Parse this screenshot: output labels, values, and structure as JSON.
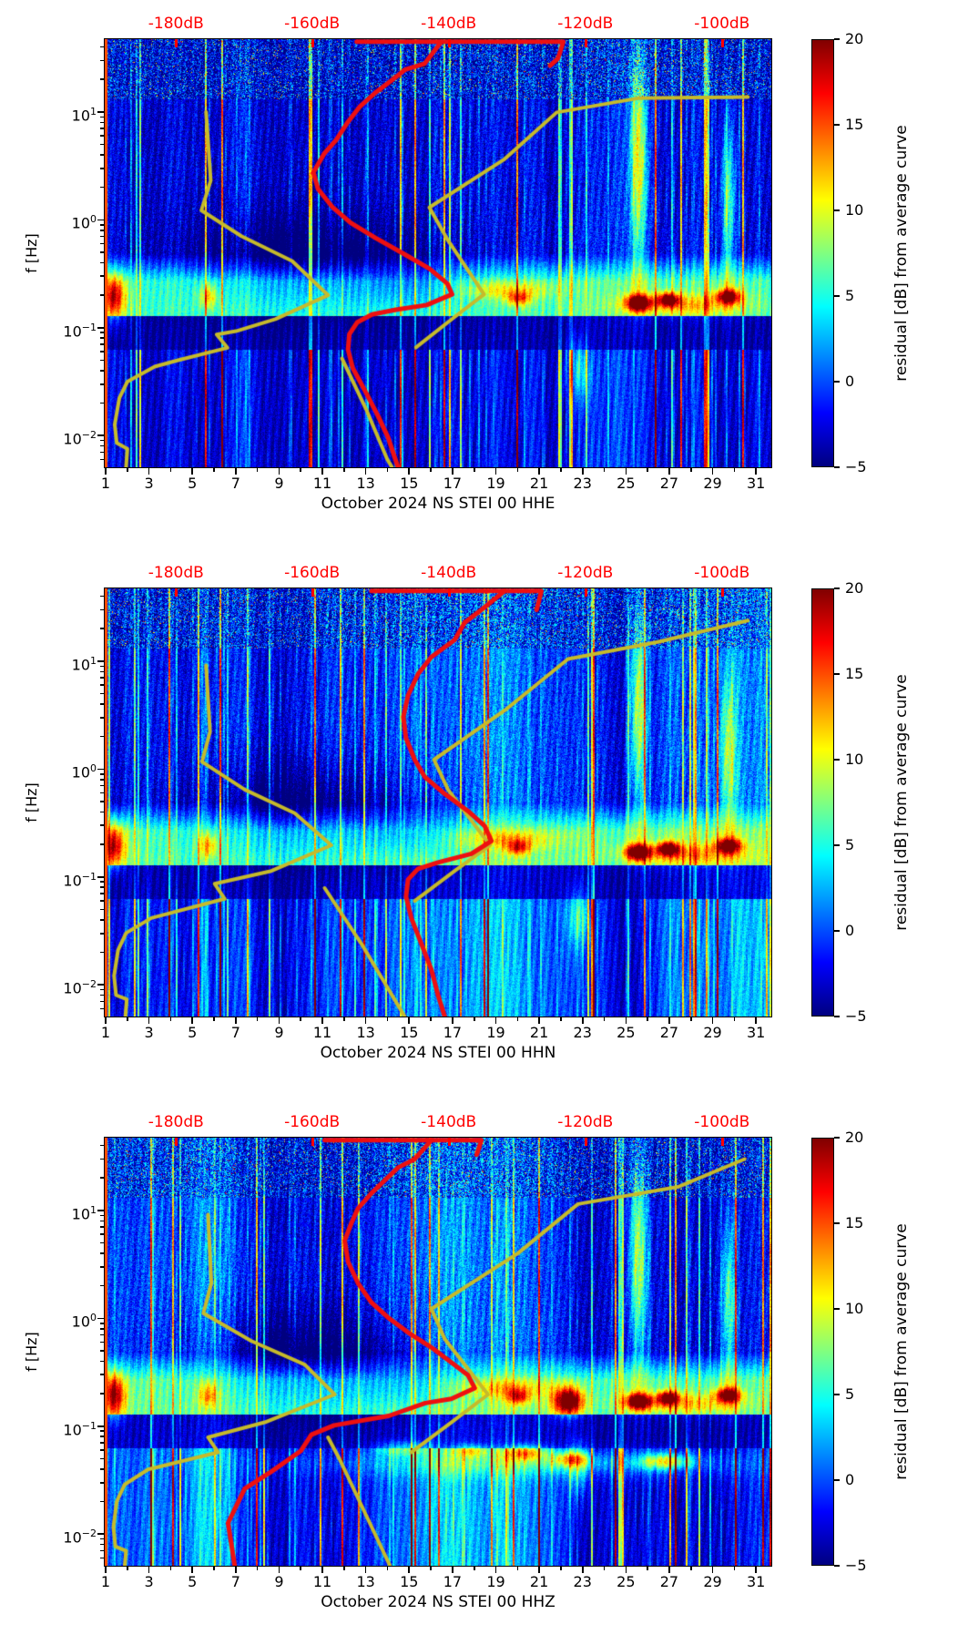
{
  "colors": {
    "label_red": "#ff0000",
    "curve_yellow": "#c6ba2b",
    "curve_red": "#ee1010",
    "axis_black": "#000000"
  },
  "chart_data": {
    "type": "heatmap",
    "colormap": "jet",
    "subplots": [
      {
        "type": "heatmap",
        "title": "October 2024 NS STEI 00 HHE",
        "ylabel": "f [Hz]",
        "y_tick_exponents": [
          1,
          0,
          -1,
          -2
        ],
        "y_range_hz": [
          0.005,
          47
        ],
        "x_tick_days": [
          1,
          3,
          5,
          7,
          9,
          11,
          13,
          15,
          17,
          19,
          21,
          23,
          25,
          27,
          29,
          31
        ],
        "x_range_days": [
          1,
          31.7
        ],
        "top_axis_labels": [
          "-180dB",
          "-160dB",
          "-140dB",
          "-120dB",
          "-100dB"
        ],
        "top_axis_positions": [
          0.107,
          0.311,
          0.516,
          0.721,
          0.926
        ],
        "colorbar_label": "residual [dB] from average curve",
        "colorbar_ticks": [
          20,
          15,
          10,
          5,
          0,
          -5
        ],
        "color_range_db": [
          -5,
          20
        ],
        "seed": 11,
        "yellow_curve_segments": [
          [
            [
              0.152,
              0.17
            ],
            [
              0.159,
              0.33
            ],
            [
              0.145,
              0.4
            ],
            [
              0.205,
              0.46
            ],
            [
              0.281,
              0.518
            ],
            [
              0.335,
              0.598
            ],
            [
              0.256,
              0.654
            ],
            [
              0.197,
              0.682
            ],
            [
              0.168,
              0.69
            ],
            [
              0.184,
              0.721
            ],
            [
              0.11,
              0.75
            ],
            [
              0.075,
              0.765
            ],
            [
              0.034,
              0.8
            ],
            [
              0.022,
              0.838
            ],
            [
              0.015,
              0.9
            ],
            [
              0.018,
              0.943
            ],
            [
              0.034,
              0.957
            ],
            [
              0.032,
              1.0
            ]
          ],
          [
            [
              0.356,
              0.746
            ],
            [
              0.392,
              0.864
            ],
            [
              0.424,
              0.982
            ],
            [
              0.431,
              1.0
            ]
          ],
          [
            [
              0.467,
              0.72
            ],
            [
              0.524,
              0.65
            ],
            [
              0.569,
              0.596
            ],
            [
              0.515,
              0.47
            ],
            [
              0.487,
              0.393
            ],
            [
              0.6,
              0.28
            ],
            [
              0.678,
              0.171
            ],
            [
              0.8,
              0.138
            ],
            [
              0.965,
              0.135
            ]
          ]
        ],
        "red_curve_segments": [
          [
            [
              0.378,
              0.006
            ],
            [
              0.688,
              0.006
            ],
            [
              0.68,
              0.045
            ],
            [
              0.668,
              0.062
            ]
          ],
          [
            [
              0.505,
              0.006
            ],
            [
              0.48,
              0.057
            ],
            [
              0.451,
              0.071
            ],
            [
              0.433,
              0.093
            ],
            [
              0.406,
              0.125
            ],
            [
              0.383,
              0.157
            ],
            [
              0.365,
              0.193
            ],
            [
              0.347,
              0.236
            ],
            [
              0.329,
              0.268
            ],
            [
              0.313,
              0.311
            ],
            [
              0.32,
              0.35
            ],
            [
              0.342,
              0.393
            ],
            [
              0.369,
              0.429
            ],
            [
              0.406,
              0.464
            ],
            [
              0.447,
              0.5
            ],
            [
              0.487,
              0.536
            ],
            [
              0.514,
              0.571
            ],
            [
              0.521,
              0.596
            ],
            [
              0.483,
              0.621
            ],
            [
              0.437,
              0.632
            ],
            [
              0.401,
              0.643
            ],
            [
              0.379,
              0.661
            ],
            [
              0.367,
              0.689
            ],
            [
              0.365,
              0.725
            ],
            [
              0.372,
              0.768
            ],
            [
              0.39,
              0.82
            ],
            [
              0.41,
              0.88
            ],
            [
              0.425,
              0.93
            ],
            [
              0.44,
              1.0
            ]
          ]
        ]
      },
      {
        "type": "heatmap",
        "title": "October 2024 NS STEI 00 HHN",
        "ylabel": "f [Hz]",
        "y_tick_exponents": [
          1,
          0,
          -1,
          -2
        ],
        "y_range_hz": [
          0.005,
          47
        ],
        "x_tick_days": [
          1,
          3,
          5,
          7,
          9,
          11,
          13,
          15,
          17,
          19,
          21,
          23,
          25,
          27,
          29,
          31
        ],
        "x_range_days": [
          1,
          31.7
        ],
        "top_axis_labels": [
          "-180dB",
          "-160dB",
          "-140dB",
          "-120dB",
          "-100dB"
        ],
        "top_axis_positions": [
          0.107,
          0.311,
          0.516,
          0.721,
          0.926
        ],
        "colorbar_label": "residual [dB] from average curve",
        "colorbar_ticks": [
          20,
          15,
          10,
          5,
          0,
          -5
        ],
        "color_range_db": [
          -5,
          20
        ],
        "seed": 23,
        "yellow_curve_segments": [
          [
            [
              0.152,
              0.18
            ],
            [
              0.158,
              0.335
            ],
            [
              0.146,
              0.405
            ],
            [
              0.21,
              0.47
            ],
            [
              0.285,
              0.525
            ],
            [
              0.34,
              0.6
            ],
            [
              0.25,
              0.66
            ],
            [
              0.165,
              0.69
            ],
            [
              0.18,
              0.725
            ],
            [
              0.07,
              0.77
            ],
            [
              0.032,
              0.805
            ],
            [
              0.02,
              0.845
            ],
            [
              0.014,
              0.905
            ],
            [
              0.017,
              0.95
            ],
            [
              0.033,
              0.96
            ],
            [
              0.031,
              1.0
            ]
          ],
          [
            [
              0.33,
              0.7
            ],
            [
              0.385,
              0.83
            ],
            [
              0.45,
              1.0
            ]
          ],
          [
            [
              0.465,
              0.73
            ],
            [
              0.525,
              0.66
            ],
            [
              0.578,
              0.6
            ],
            [
              0.515,
              0.47
            ],
            [
              0.494,
              0.4
            ],
            [
              0.6,
              0.285
            ],
            [
              0.695,
              0.165
            ],
            [
              0.83,
              0.125
            ],
            [
              0.965,
              0.075
            ]
          ]
        ],
        "red_curve_segments": [
          [
            [
              0.4,
              0.006
            ],
            [
              0.655,
              0.006
            ],
            [
              0.648,
              0.05
            ]
          ],
          [
            [
              0.6,
              0.006
            ],
            [
              0.565,
              0.05
            ],
            [
              0.54,
              0.08
            ],
            [
              0.525,
              0.12
            ],
            [
              0.49,
              0.16
            ],
            [
              0.47,
              0.2
            ],
            [
              0.455,
              0.25
            ],
            [
              0.448,
              0.3
            ],
            [
              0.452,
              0.35
            ],
            [
              0.465,
              0.4
            ],
            [
              0.48,
              0.44
            ],
            [
              0.51,
              0.48
            ],
            [
              0.545,
              0.52
            ],
            [
              0.57,
              0.555
            ],
            [
              0.58,
              0.59
            ],
            [
              0.55,
              0.62
            ],
            [
              0.5,
              0.64
            ],
            [
              0.47,
              0.655
            ],
            [
              0.455,
              0.68
            ],
            [
              0.452,
              0.72
            ],
            [
              0.46,
              0.77
            ],
            [
              0.475,
              0.83
            ],
            [
              0.49,
              0.89
            ],
            [
              0.5,
              0.95
            ],
            [
              0.51,
              1.0
            ]
          ]
        ]
      },
      {
        "type": "heatmap",
        "title": "October 2024 NS STEI 00 HHZ",
        "ylabel": "f [Hz]",
        "y_tick_exponents": [
          1,
          0,
          -1,
          -2
        ],
        "y_range_hz": [
          0.005,
          47
        ],
        "x_tick_days": [
          1,
          3,
          5,
          7,
          9,
          11,
          13,
          15,
          17,
          19,
          21,
          23,
          25,
          27,
          29,
          31
        ],
        "x_range_days": [
          1,
          31.7
        ],
        "top_axis_labels": [
          "-180dB",
          "-160dB",
          "-140dB",
          "-120dB",
          "-100dB"
        ],
        "top_axis_positions": [
          0.107,
          0.311,
          0.516,
          0.721,
          0.926
        ],
        "colorbar_label": "residual [dB] from average curve",
        "colorbar_ticks": [
          20,
          15,
          10,
          5,
          0,
          -5
        ],
        "color_range_db": [
          -5,
          20
        ],
        "seed": 37,
        "yellow_curve_segments": [
          [
            [
              0.155,
              0.18
            ],
            [
              0.16,
              0.34
            ],
            [
              0.148,
              0.41
            ],
            [
              0.22,
              0.475
            ],
            [
              0.3,
              0.53
            ],
            [
              0.345,
              0.6
            ],
            [
              0.24,
              0.665
            ],
            [
              0.155,
              0.7
            ],
            [
              0.17,
              0.735
            ],
            [
              0.065,
              0.775
            ],
            [
              0.03,
              0.81
            ],
            [
              0.018,
              0.85
            ],
            [
              0.013,
              0.91
            ],
            [
              0.016,
              0.955
            ],
            [
              0.032,
              0.965
            ],
            [
              0.03,
              1.0
            ]
          ],
          [
            [
              0.335,
              0.7
            ],
            [
              0.352,
              0.75
            ],
            [
              0.428,
              1.0
            ]
          ],
          [
            [
              0.46,
              0.735
            ],
            [
              0.52,
              0.665
            ],
            [
              0.575,
              0.6
            ],
            [
              0.51,
              0.47
            ],
            [
              0.49,
              0.4
            ],
            [
              0.62,
              0.27
            ],
            [
              0.71,
              0.155
            ],
            [
              0.86,
              0.115
            ],
            [
              0.96,
              0.05
            ]
          ]
        ],
        "red_curve_segments": [
          [
            [
              0.33,
              0.006
            ],
            [
              0.565,
              0.006
            ],
            [
              0.558,
              0.04
            ]
          ],
          [
            [
              0.49,
              0.006
            ],
            [
              0.465,
              0.05
            ],
            [
              0.44,
              0.07
            ],
            [
              0.42,
              0.1
            ],
            [
              0.4,
              0.13
            ],
            [
              0.38,
              0.165
            ],
            [
              0.37,
              0.2
            ],
            [
              0.36,
              0.24
            ],
            [
              0.365,
              0.29
            ],
            [
              0.38,
              0.34
            ],
            [
              0.4,
              0.385
            ],
            [
              0.425,
              0.42
            ],
            [
              0.455,
              0.455
            ],
            [
              0.49,
              0.49
            ],
            [
              0.52,
              0.525
            ],
            [
              0.545,
              0.555
            ],
            [
              0.555,
              0.585
            ],
            [
              0.52,
              0.61
            ],
            [
              0.481,
              0.62
            ],
            [
              0.426,
              0.65
            ],
            [
              0.344,
              0.672
            ],
            [
              0.31,
              0.694
            ],
            [
              0.294,
              0.732
            ],
            [
              0.25,
              0.78
            ],
            [
              0.21,
              0.82
            ],
            [
              0.185,
              0.9
            ],
            [
              0.195,
              1.0
            ]
          ]
        ]
      }
    ]
  }
}
